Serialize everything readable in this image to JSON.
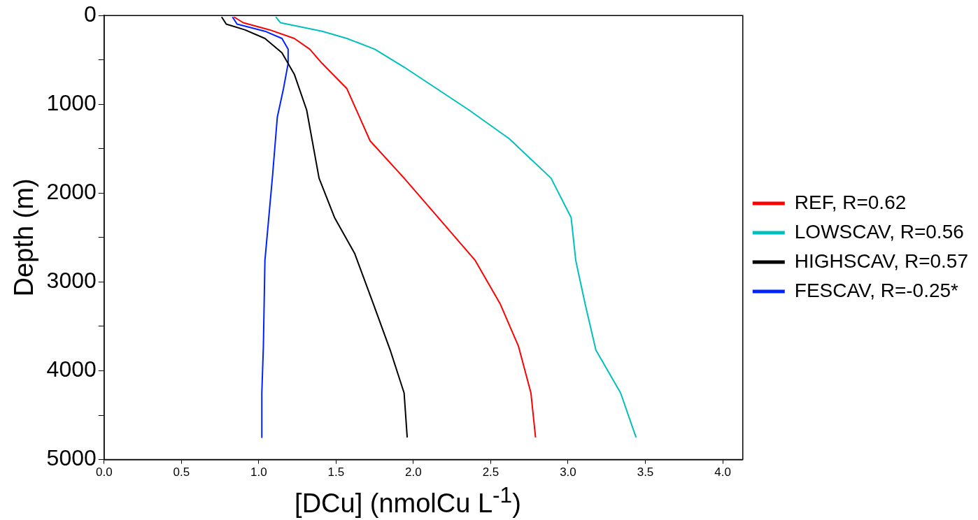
{
  "chart_data": {
    "type": "line",
    "xlabel": "[DCu] (nmolCu L$^{-1}$)",
    "ylabel": "Depth (m)",
    "xlim": [
      0,
      4.13
    ],
    "ylim": [
      5000,
      0
    ],
    "xticks": [
      {
        "value": 0,
        "label": "0.0"
      },
      0.5,
      {
        "value": 1,
        "label": "1.0"
      },
      1.5,
      {
        "value": 2,
        "label": "2.0"
      },
      2.5,
      {
        "value": 3,
        "label": "3.0"
      },
      3.5,
      {
        "value": 4,
        "label": "4.0"
      }
    ],
    "yticks": [
      0,
      {
        "value": 500,
        "label": null
      },
      1000,
      {
        "value": 1500,
        "label": null
      },
      2000,
      {
        "value": 2500,
        "label": null
      },
      3000,
      {
        "value": 3500,
        "label": null
      },
      4000,
      {
        "value": 4500,
        "label": null
      },
      5000
    ],
    "legend": "right",
    "grid": false,
    "marker": "none",
    "line_style": "solid",
    "series": [
      {
        "name": "REF, R=0.62",
        "color": "#ff0000",
        "x": [
          0.84,
          0.9,
          1.07,
          1.23,
          1.33,
          1.41,
          1.57,
          1.72,
          1.94,
          2.16,
          2.4,
          2.56,
          2.68,
          2.76,
          2.79
        ],
        "values": [
          16,
          81,
          161,
          258,
          379,
          540,
          823,
          1411,
          1831,
          2274,
          2758,
          3242,
          3726,
          4250,
          4750
        ]
      },
      {
        "name": "LOWSCAV, R=0.56",
        "color": "#00bfbf",
        "x": [
          1.11,
          1.14,
          1.41,
          1.57,
          1.75,
          1.94,
          2.15,
          2.36,
          2.62,
          2.89,
          3.02,
          3.05,
          3.11,
          3.18,
          3.34,
          3.44
        ],
        "values": [
          16,
          81,
          177,
          258,
          379,
          581,
          823,
          1065,
          1387,
          1831,
          2274,
          2758,
          3242,
          3766,
          4250,
          4750
        ]
      },
      {
        "name": "HIGHSCAV, R=0.57",
        "color": "#000000",
        "x": [
          0.76,
          0.79,
          0.91,
          1.04,
          1.15,
          1.23,
          1.31,
          1.39,
          1.49,
          1.62,
          1.74,
          1.85,
          1.94,
          1.96
        ],
        "values": [
          16,
          97,
          161,
          258,
          419,
          661,
          1065,
          1831,
          2274,
          2677,
          3242,
          3766,
          4250,
          4750
        ]
      },
      {
        "name": "FESCAV, R=-0.25*",
        "color": "#0022ff",
        "x": [
          0.83,
          0.86,
          1.04,
          1.15,
          1.19,
          1.19,
          1.16,
          1.12,
          1.09,
          1.04,
          1.03,
          1.02,
          1.02
        ],
        "values": [
          16,
          97,
          177,
          258,
          379,
          540,
          823,
          1145,
          1790,
          2758,
          3726,
          4250,
          4750
        ]
      }
    ]
  }
}
